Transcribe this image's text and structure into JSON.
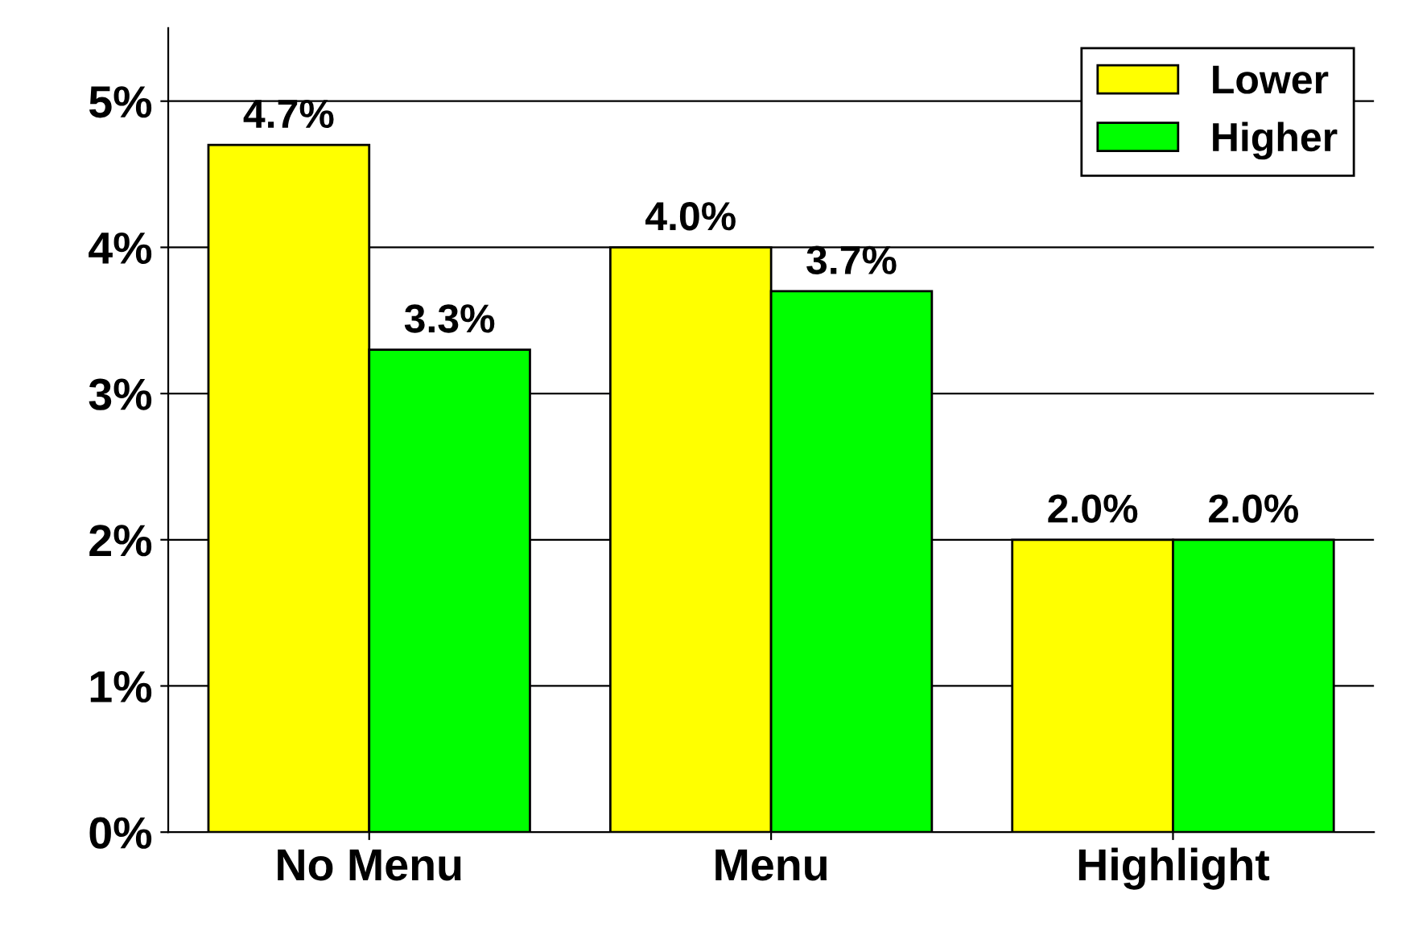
{
  "chart_data": {
    "type": "bar",
    "categories": [
      "No Menu",
      "Menu",
      "Highlight"
    ],
    "series": [
      {
        "name": "Lower",
        "color": "#ffff00",
        "values": [
          4.7,
          4.0,
          2.0
        ],
        "value_labels": [
          "4.7%",
          "4.0%",
          "2.0%"
        ]
      },
      {
        "name": "Higher",
        "color": "#00ff00",
        "values": [
          3.3,
          3.7,
          2.0
        ],
        "value_labels": [
          "3.3%",
          "3.7%",
          "2.0%"
        ]
      }
    ],
    "ylim": [
      0,
      5.5
    ],
    "yticks": [
      {
        "value": 0,
        "label": "0%"
      },
      {
        "value": 1,
        "label": "1%"
      },
      {
        "value": 2,
        "label": "2%"
      },
      {
        "value": 3,
        "label": "3%"
      },
      {
        "value": 4,
        "label": "4%"
      },
      {
        "value": 5,
        "label": "5%"
      }
    ],
    "grid": "y",
    "legend": "top right"
  }
}
